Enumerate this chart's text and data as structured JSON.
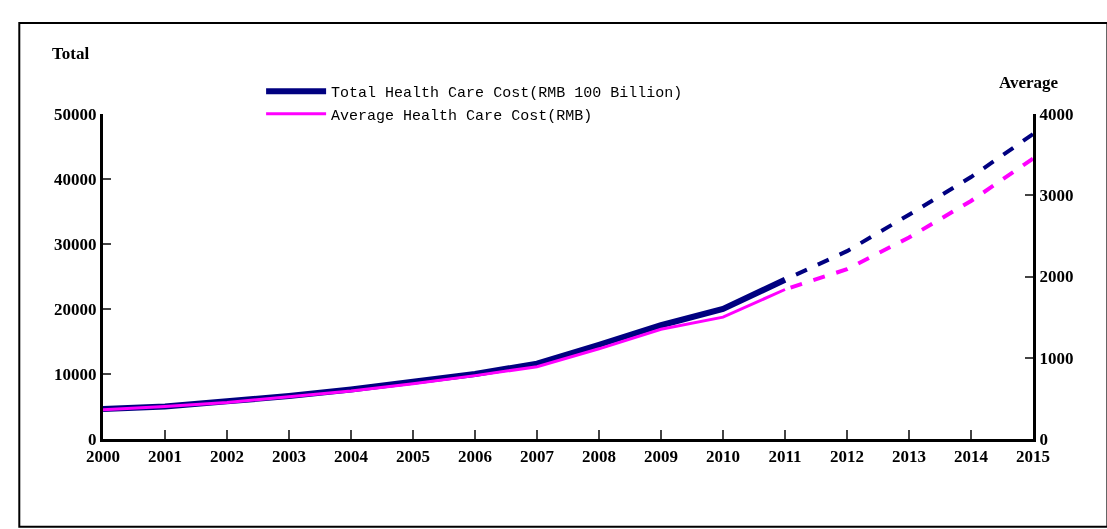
{
  "chart_data": {
    "type": "line",
    "ylabel": "Total",
    "y2label": "Average",
    "categories": [
      "2000",
      "2001",
      "2002",
      "2003",
      "2004",
      "2005",
      "2006",
      "2007",
      "2008",
      "2009",
      "2010",
      "2011",
      "2012",
      "2013",
      "2014",
      "2015"
    ],
    "series": [
      {
        "name": "Total Health Care Cost(RMB 100 Billion)",
        "color": "#000080",
        "line_style": "solid",
        "values": [
          4600,
          5000,
          5800,
          6600,
          7600,
          8800,
          10000,
          11600,
          14500,
          17500,
          20000,
          24500,
          null,
          null,
          null,
          null
        ]
      },
      {
        "name": "Average Health Care Cost(RMB)",
        "color": "#ff00ff",
        "axis": "y2",
        "line_style": "solid",
        "values": [
          360,
          400,
          450,
          520,
          590,
          680,
          780,
          890,
          1110,
          1350,
          1500,
          1840,
          null,
          null,
          null,
          null
        ]
      },
      {
        "color": "#000080",
        "line_style": "dashed",
        "values": [
          null,
          null,
          null,
          null,
          null,
          null,
          null,
          null,
          null,
          null,
          null,
          24500,
          28900,
          34500,
          40300,
          46900
        ]
      },
      {
        "color": "#ff00ff",
        "axis": "y2",
        "line_style": "dashed",
        "values": [
          null,
          null,
          null,
          null,
          null,
          null,
          null,
          null,
          null,
          null,
          null,
          1840,
          2090,
          2480,
          2930,
          3450
        ]
      }
    ],
    "ylim": [
      0,
      50000
    ],
    "yticks": [
      0,
      10000,
      20000,
      30000,
      40000,
      50000
    ],
    "y2lim": [
      0,
      4000
    ],
    "y2ticks": [
      0,
      1000,
      2000,
      3000,
      4000
    ],
    "grid": false,
    "legend": "top",
    "marker": "none"
  }
}
